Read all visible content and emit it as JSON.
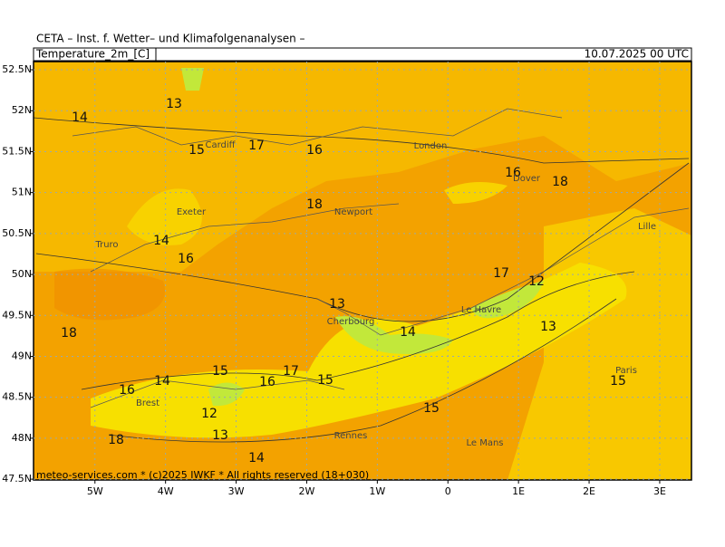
{
  "header": {
    "title": "CETA – Inst. f. Wetter– und Klimafolgenanalysen –",
    "variable": "Temperature_2m_[C]",
    "valid_time": "10.07.2025 00 UTC"
  },
  "map": {
    "xlim": [
      -5.87,
      3.45
    ],
    "ylim": [
      47.49,
      52.6
    ],
    "xticks": [
      {
        "value": -5,
        "label": "5W"
      },
      {
        "value": -4,
        "label": "4W"
      },
      {
        "value": -3,
        "label": "3W"
      },
      {
        "value": -2,
        "label": "2W"
      },
      {
        "value": -1,
        "label": "1W"
      },
      0,
      {
        "value": 1,
        "label": "1E"
      },
      {
        "value": 2,
        "label": "2E"
      },
      {
        "value": 3,
        "label": "3E"
      }
    ],
    "yticks": [
      {
        "value": 52.5,
        "label": "52.5N"
      },
      {
        "value": 52,
        "label": "52N"
      },
      {
        "value": 51.5,
        "label": "51.5N"
      },
      {
        "value": 51,
        "label": "51N"
      },
      {
        "value": 50.5,
        "label": "50.5N"
      },
      {
        "value": 50,
        "label": "50N"
      },
      {
        "value": 49.5,
        "label": "49.5N"
      },
      {
        "value": 49,
        "label": "49N"
      },
      {
        "value": 48.5,
        "label": "48.5N"
      },
      {
        "value": 48,
        "label": "48N"
      },
      {
        "value": 47.5,
        "label": "47.5N"
      }
    ],
    "grid": true,
    "contour_labels": [
      14,
      13,
      15,
      17,
      16,
      18,
      16,
      18,
      14,
      16,
      17,
      12,
      13,
      14,
      13,
      18,
      15,
      14,
      16,
      17,
      15,
      16,
      12,
      15,
      13,
      18,
      14,
      15
    ],
    "cities": [
      "Cardiff",
      "London",
      "Exeter",
      "Newport",
      "Truro",
      "Dover",
      "Lille",
      "Cherbourg",
      "Le Havre",
      "Brest",
      "Rennes",
      "Le Mans",
      "Paris"
    ]
  },
  "footer": "meteo-services.com * (c)2025 IWKF * All rights reserved (18+030)"
}
